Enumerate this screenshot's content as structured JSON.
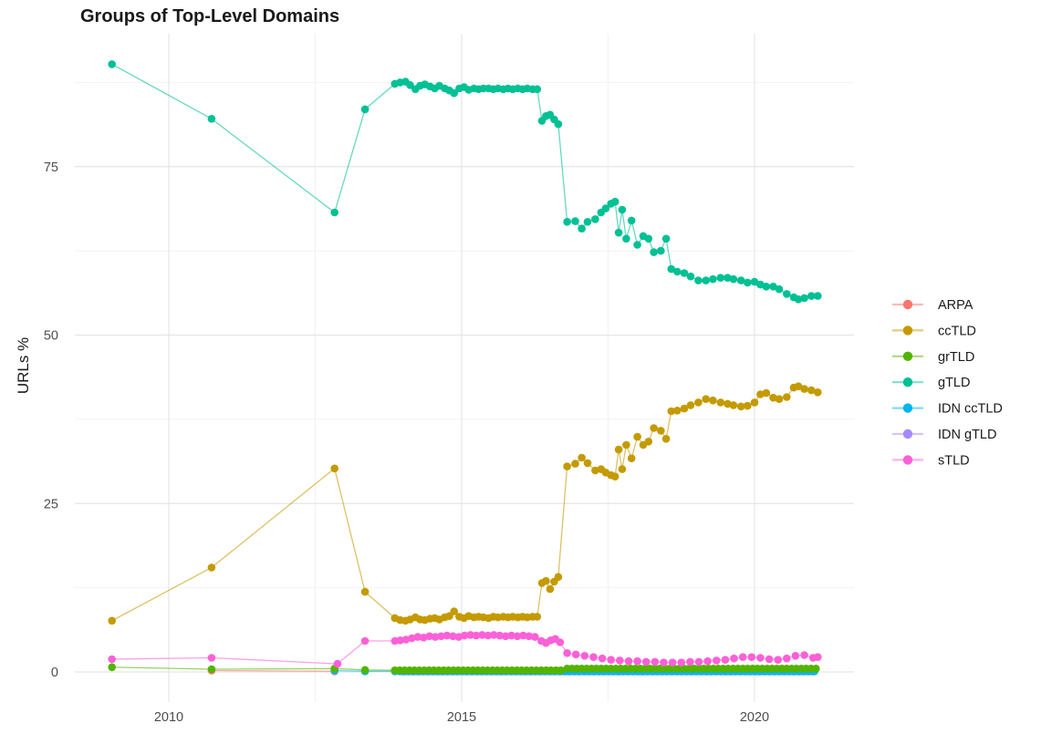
{
  "chart_data": {
    "type": "line",
    "title": "Groups of Top-Level Domains",
    "xlabel": "",
    "ylabel": "URLs %",
    "grid": "on",
    "legend_position": "right",
    "x_axis": {
      "range": [
        2008.4,
        2021.7
      ],
      "ticks": [
        {
          "value": 2010,
          "label": "2010"
        },
        {
          "value": 2015,
          "label": "2015"
        },
        {
          "value": 2020,
          "label": "2020"
        }
      ],
      "minor": [
        2012.5,
        2017.5
      ]
    },
    "y_axis": {
      "range": [
        -4.5,
        94.5
      ],
      "ticks": [
        {
          "value": 0,
          "label": "0"
        },
        {
          "value": 25,
          "label": "25"
        },
        {
          "value": 50,
          "label": "50"
        },
        {
          "value": 75,
          "label": "75"
        }
      ],
      "minor": [
        12.5,
        37.5,
        62.5,
        87.5
      ]
    },
    "series": [
      {
        "name": "ARPA",
        "color": "#F8766D",
        "points": [
          [
            2010.73,
            0.2
          ],
          [
            2012.83,
            0.1
          ]
        ]
      },
      {
        "name": "ccTLD",
        "color": "#C49A00",
        "points": [
          [
            2009.03,
            7.6
          ],
          [
            2010.73,
            15.5
          ],
          [
            2012.83,
            30.2
          ],
          [
            2013.35,
            11.9
          ],
          [
            2013.86,
            8.0
          ],
          [
            2013.95,
            7.7
          ],
          [
            2014.04,
            7.6
          ],
          [
            2014.12,
            7.8
          ],
          [
            2014.21,
            8.1
          ],
          [
            2014.29,
            7.8
          ],
          [
            2014.37,
            7.7
          ],
          [
            2014.46,
            7.9
          ],
          [
            2014.54,
            8.0
          ],
          [
            2014.62,
            7.8
          ],
          [
            2014.71,
            8.1
          ],
          [
            2014.79,
            8.3
          ],
          [
            2014.87,
            9.0
          ],
          [
            2014.96,
            8.2
          ],
          [
            2015.04,
            8.0
          ],
          [
            2015.12,
            8.3
          ],
          [
            2015.21,
            8.1
          ],
          [
            2015.29,
            8.2
          ],
          [
            2015.37,
            8.1
          ],
          [
            2015.46,
            8.0
          ],
          [
            2015.54,
            8.2
          ],
          [
            2015.62,
            8.1
          ],
          [
            2015.71,
            8.2
          ],
          [
            2015.79,
            8.1
          ],
          [
            2015.87,
            8.2
          ],
          [
            2015.96,
            8.1
          ],
          [
            2016.04,
            8.2
          ],
          [
            2016.12,
            8.1
          ],
          [
            2016.21,
            8.2
          ],
          [
            2016.29,
            8.2
          ],
          [
            2016.37,
            13.2
          ],
          [
            2016.44,
            13.5
          ],
          [
            2016.51,
            12.3
          ],
          [
            2016.58,
            13.4
          ],
          [
            2016.65,
            14.1
          ],
          [
            2016.8,
            30.5
          ],
          [
            2016.94,
            30.9
          ],
          [
            2017.05,
            31.8
          ],
          [
            2017.15,
            31.0
          ],
          [
            2017.28,
            29.9
          ],
          [
            2017.38,
            30.1
          ],
          [
            2017.46,
            29.6
          ],
          [
            2017.55,
            29.2
          ],
          [
            2017.62,
            29.0
          ],
          [
            2017.68,
            33.0
          ],
          [
            2017.74,
            30.1
          ],
          [
            2017.81,
            33.7
          ],
          [
            2017.9,
            31.7
          ],
          [
            2018.0,
            34.9
          ],
          [
            2018.1,
            33.7
          ],
          [
            2018.19,
            34.2
          ],
          [
            2018.28,
            36.2
          ],
          [
            2018.4,
            35.8
          ],
          [
            2018.49,
            34.6
          ],
          [
            2018.58,
            38.7
          ],
          [
            2018.68,
            38.8
          ],
          [
            2018.8,
            39.1
          ],
          [
            2018.91,
            39.6
          ],
          [
            2019.04,
            40.0
          ],
          [
            2019.17,
            40.5
          ],
          [
            2019.29,
            40.3
          ],
          [
            2019.42,
            40.0
          ],
          [
            2019.54,
            39.8
          ],
          [
            2019.64,
            39.6
          ],
          [
            2019.77,
            39.4
          ],
          [
            2019.88,
            39.5
          ],
          [
            2020.0,
            40.0
          ],
          [
            2020.1,
            41.2
          ],
          [
            2020.2,
            41.4
          ],
          [
            2020.32,
            40.7
          ],
          [
            2020.42,
            40.5
          ],
          [
            2020.55,
            40.8
          ],
          [
            2020.67,
            42.2
          ],
          [
            2020.75,
            42.4
          ],
          [
            2020.85,
            42.0
          ],
          [
            2020.97,
            41.8
          ],
          [
            2021.08,
            41.5
          ]
        ]
      },
      {
        "name": "grTLD",
        "color": "#53B400",
        "points": [
          [
            2009.03,
            0.7
          ],
          [
            2010.73,
            0.4
          ],
          [
            2012.83,
            0.5
          ],
          [
            2013.35,
            0.3
          ]
        ],
        "flat_runs": [
          [
            2013.86,
            2016.7,
            0.0833,
            0.25
          ],
          [
            2016.8,
            2021.08,
            0.0833,
            0.5
          ]
        ]
      },
      {
        "name": "gTLD",
        "color": "#00C094",
        "points": [
          [
            2009.03,
            90.2
          ],
          [
            2010.73,
            82.1
          ],
          [
            2012.83,
            68.2
          ],
          [
            2013.35,
            83.5
          ],
          [
            2013.86,
            87.3
          ],
          [
            2013.95,
            87.5
          ],
          [
            2014.04,
            87.6
          ],
          [
            2014.12,
            87.1
          ],
          [
            2014.21,
            86.5
          ],
          [
            2014.29,
            87.0
          ],
          [
            2014.37,
            87.2
          ],
          [
            2014.46,
            86.9
          ],
          [
            2014.54,
            86.6
          ],
          [
            2014.62,
            87.0
          ],
          [
            2014.71,
            86.6
          ],
          [
            2014.79,
            86.3
          ],
          [
            2014.87,
            85.9
          ],
          [
            2014.96,
            86.6
          ],
          [
            2015.04,
            86.8
          ],
          [
            2015.12,
            86.4
          ],
          [
            2015.21,
            86.6
          ],
          [
            2015.29,
            86.5
          ],
          [
            2015.37,
            86.6
          ],
          [
            2015.46,
            86.6
          ],
          [
            2015.54,
            86.5
          ],
          [
            2015.62,
            86.6
          ],
          [
            2015.71,
            86.5
          ],
          [
            2015.79,
            86.6
          ],
          [
            2015.87,
            86.5
          ],
          [
            2015.96,
            86.6
          ],
          [
            2016.04,
            86.5
          ],
          [
            2016.12,
            86.6
          ],
          [
            2016.21,
            86.5
          ],
          [
            2016.29,
            86.5
          ],
          [
            2016.37,
            81.8
          ],
          [
            2016.44,
            82.5
          ],
          [
            2016.51,
            82.7
          ],
          [
            2016.58,
            82.0
          ],
          [
            2016.65,
            81.3
          ],
          [
            2016.8,
            66.8
          ],
          [
            2016.94,
            66.9
          ],
          [
            2017.05,
            65.8
          ],
          [
            2017.15,
            66.8
          ],
          [
            2017.28,
            67.2
          ],
          [
            2017.38,
            68.2
          ],
          [
            2017.46,
            68.8
          ],
          [
            2017.55,
            69.5
          ],
          [
            2017.62,
            69.8
          ],
          [
            2017.68,
            65.2
          ],
          [
            2017.74,
            68.6
          ],
          [
            2017.81,
            64.3
          ],
          [
            2017.9,
            67.0
          ],
          [
            2018.0,
            63.4
          ],
          [
            2018.1,
            64.7
          ],
          [
            2018.19,
            64.3
          ],
          [
            2018.28,
            62.3
          ],
          [
            2018.4,
            62.5
          ],
          [
            2018.49,
            64.3
          ],
          [
            2018.58,
            59.8
          ],
          [
            2018.68,
            59.4
          ],
          [
            2018.8,
            59.2
          ],
          [
            2018.91,
            58.7
          ],
          [
            2019.04,
            58.1
          ],
          [
            2019.17,
            58.1
          ],
          [
            2019.29,
            58.3
          ],
          [
            2019.42,
            58.5
          ],
          [
            2019.54,
            58.5
          ],
          [
            2019.64,
            58.3
          ],
          [
            2019.77,
            58.1
          ],
          [
            2019.88,
            57.8
          ],
          [
            2020.0,
            57.9
          ],
          [
            2020.1,
            57.5
          ],
          [
            2020.2,
            57.2
          ],
          [
            2020.32,
            57.2
          ],
          [
            2020.42,
            56.8
          ],
          [
            2020.55,
            56.1
          ],
          [
            2020.67,
            55.6
          ],
          [
            2020.75,
            55.3
          ],
          [
            2020.85,
            55.5
          ],
          [
            2020.97,
            55.8
          ],
          [
            2021.08,
            55.8
          ]
        ]
      },
      {
        "name": "IDN ccTLD",
        "color": "#00B6EB",
        "points": [
          [
            2012.83,
            0.2
          ],
          [
            2013.35,
            0.1
          ]
        ],
        "flat_runs": [
          [
            2013.86,
            2021.08,
            0.0833,
            0.1
          ]
        ]
      },
      {
        "name": "IDN gTLD",
        "color": "#A58AFF",
        "points": [],
        "flat_runs": [
          [
            2014.0,
            2021.08,
            0.0833,
            0.05
          ]
        ]
      },
      {
        "name": "sTLD",
        "color": "#FB61D7",
        "points": [
          [
            2009.03,
            1.9
          ],
          [
            2010.73,
            2.1
          ],
          [
            2012.88,
            1.2
          ],
          [
            2013.35,
            4.6
          ],
          [
            2013.86,
            4.6
          ],
          [
            2013.95,
            4.7
          ],
          [
            2014.05,
            4.8
          ],
          [
            2014.15,
            5.0
          ],
          [
            2014.25,
            5.2
          ],
          [
            2014.35,
            5.1
          ],
          [
            2014.45,
            5.3
          ],
          [
            2014.55,
            5.2
          ],
          [
            2014.65,
            5.3
          ],
          [
            2014.75,
            5.4
          ],
          [
            2014.85,
            5.3
          ],
          [
            2014.95,
            5.2
          ],
          [
            2015.05,
            5.4
          ],
          [
            2015.15,
            5.5
          ],
          [
            2015.25,
            5.4
          ],
          [
            2015.35,
            5.5
          ],
          [
            2015.45,
            5.4
          ],
          [
            2015.55,
            5.5
          ],
          [
            2015.65,
            5.4
          ],
          [
            2015.75,
            5.3
          ],
          [
            2015.85,
            5.4
          ],
          [
            2015.95,
            5.3
          ],
          [
            2016.05,
            5.4
          ],
          [
            2016.15,
            5.3
          ],
          [
            2016.25,
            5.2
          ],
          [
            2016.36,
            4.6
          ],
          [
            2016.44,
            4.3
          ],
          [
            2016.52,
            4.7
          ],
          [
            2016.6,
            4.9
          ],
          [
            2016.68,
            4.4
          ],
          [
            2016.8,
            2.8
          ],
          [
            2016.95,
            2.6
          ],
          [
            2017.1,
            2.4
          ],
          [
            2017.25,
            2.2
          ],
          [
            2017.4,
            2.0
          ],
          [
            2017.55,
            1.8
          ],
          [
            2017.7,
            1.7
          ],
          [
            2017.85,
            1.6
          ],
          [
            2018.0,
            1.6
          ],
          [
            2018.15,
            1.5
          ],
          [
            2018.3,
            1.5
          ],
          [
            2018.45,
            1.4
          ],
          [
            2018.6,
            1.4
          ],
          [
            2018.75,
            1.4
          ],
          [
            2018.9,
            1.5
          ],
          [
            2019.05,
            1.5
          ],
          [
            2019.2,
            1.6
          ],
          [
            2019.35,
            1.7
          ],
          [
            2019.5,
            1.8
          ],
          [
            2019.65,
            2.0
          ],
          [
            2019.8,
            2.2
          ],
          [
            2019.95,
            2.2
          ],
          [
            2020.1,
            2.1
          ],
          [
            2020.25,
            1.9
          ],
          [
            2020.4,
            1.8
          ],
          [
            2020.55,
            2.0
          ],
          [
            2020.7,
            2.4
          ],
          [
            2020.85,
            2.5
          ],
          [
            2021.0,
            2.1
          ],
          [
            2021.08,
            2.2
          ]
        ]
      }
    ],
    "legend": {
      "items": [
        "ARPA",
        "ccTLD",
        "grTLD",
        "gTLD",
        "IDN ccTLD",
        "IDN gTLD",
        "sTLD"
      ]
    },
    "colors": {
      "major_grid": "#E5E5E5",
      "minor_grid": "#F2F2F2",
      "tick_text": "#4D4D4D",
      "title_text": "#1A1A1A"
    }
  }
}
